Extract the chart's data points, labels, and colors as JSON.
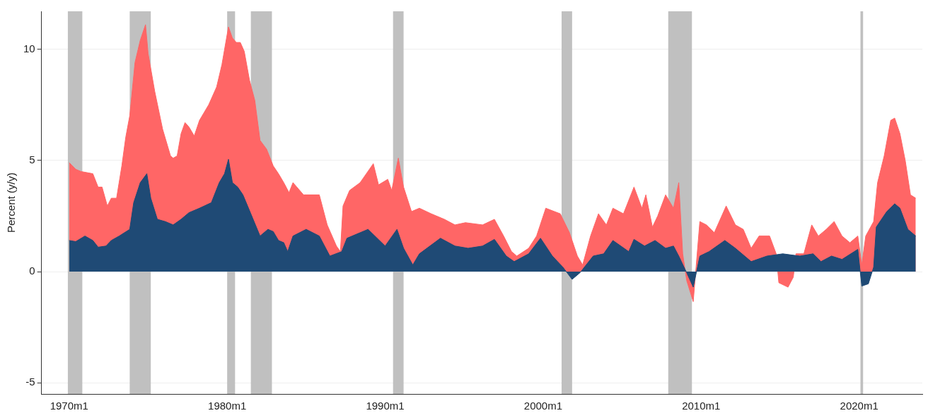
{
  "chart_data": {
    "type": "area",
    "ylabel": "Percent (y/y)",
    "xlim": [
      "1968-04",
      "2024-01"
    ],
    "xticks": [
      {
        "value": "1970-01",
        "label": "1970m1"
      },
      {
        "value": "1980-01",
        "label": "1980m1"
      },
      {
        "value": "1990-01",
        "label": "1990m1"
      },
      {
        "value": "2000-01",
        "label": "2000m1"
      },
      {
        "value": "2010-01",
        "label": "2010m1"
      },
      {
        "value": "2020-01",
        "label": "2020m1"
      }
    ],
    "ylim": [
      -5.5,
      11.7
    ],
    "yticks": [
      -5,
      0,
      5,
      10
    ],
    "grid": "y",
    "legend": false,
    "marker": "none",
    "bands": [
      {
        "axis": "x",
        "from": "1969-12",
        "to": "1970-11",
        "color": "#c0c0c0"
      },
      {
        "axis": "x",
        "from": "1973-11",
        "to": "1975-03",
        "color": "#c0c0c0"
      },
      {
        "axis": "x",
        "from": "1980-01",
        "to": "1980-07",
        "color": "#c0c0c0"
      },
      {
        "axis": "x",
        "from": "1981-07",
        "to": "1982-11",
        "color": "#c0c0c0"
      },
      {
        "axis": "x",
        "from": "1990-07",
        "to": "1991-03",
        "color": "#c0c0c0"
      },
      {
        "axis": "x",
        "from": "2001-03",
        "to": "2001-11",
        "color": "#c0c0c0"
      },
      {
        "axis": "x",
        "from": "2007-12",
        "to": "2009-06",
        "color": "#c0c0c0"
      },
      {
        "axis": "x",
        "from": "2020-02",
        "to": "2020-04",
        "color": "#c0c0c0"
      }
    ],
    "series": [
      {
        "color": "#ff6666",
        "x": [
          "1970-01",
          "1970-06",
          "1970-10",
          "1971-07",
          "1971-11",
          "1972-02",
          "1972-06",
          "1972-09",
          "1973-01",
          "1973-05",
          "1973-08",
          "1973-11",
          "1974-03",
          "1974-07",
          "1974-11",
          "1975-01",
          "1975-06",
          "1975-12",
          "1976-06",
          "1976-08",
          "1976-11",
          "1977-02",
          "1977-05",
          "1977-08",
          "1977-12",
          "1978-04",
          "1978-11",
          "1979-05",
          "1979-09",
          "1980-02",
          "1980-05",
          "1980-08",
          "1980-11",
          "1981-02",
          "1981-06",
          "1981-10",
          "1982-02",
          "1982-07",
          "1982-12",
          "1983-04",
          "1983-08",
          "1983-12",
          "1984-03",
          "1984-11",
          "1985-11",
          "1986-05",
          "1986-12",
          "1987-03",
          "1987-05",
          "1987-10",
          "1988-06",
          "1989-04",
          "1989-08",
          "1990-03",
          "1990-06",
          "1990-11",
          "1991-03",
          "1991-09",
          "1992-03",
          "1992-12",
          "1993-10",
          "1994-06",
          "1995-02",
          "1996-03",
          "1996-12",
          "1997-07",
          "1998-01",
          "1998-05",
          "1999-02",
          "1999-08",
          "2000-03",
          "2001-02",
          "2001-09",
          "2002-03",
          "2002-07",
          "2003-01",
          "2003-07",
          "2004-01",
          "2004-06",
          "2005-02",
          "2005-10",
          "2006-04",
          "2006-07",
          "2006-12",
          "2007-04",
          "2007-10",
          "2008-04",
          "2008-08",
          "2008-11",
          "2009-02",
          "2009-07",
          "2009-12",
          "2010-05",
          "2010-11",
          "2011-08",
          "2012-03",
          "2012-09",
          "2013-03",
          "2013-09",
          "2014-05",
          "2014-10",
          "2014-12",
          "2015-07",
          "2015-11",
          "2016-01",
          "2016-07",
          "2017-01",
          "2017-06",
          "2017-12",
          "2018-06",
          "2018-12",
          "2019-06",
          "2019-12",
          "2020-03",
          "2020-06",
          "2020-12",
          "2021-03",
          "2021-08",
          "2022-01",
          "2022-04",
          "2022-08",
          "2022-12",
          "2023-04",
          "2023-08"
        ],
        "values": [
          4.9,
          4.6,
          4.5,
          4.4,
          3.8,
          3.8,
          2.95,
          3.3,
          3.3,
          4.75,
          6.05,
          7.0,
          9.4,
          10.4,
          11.1,
          9.8,
          8.1,
          6.4,
          5.2,
          5.1,
          5.2,
          6.2,
          6.7,
          6.5,
          6.1,
          6.8,
          7.5,
          8.3,
          9.3,
          11.0,
          10.5,
          10.3,
          10.3,
          9.9,
          8.6,
          7.7,
          5.9,
          5.5,
          4.75,
          4.4,
          4.0,
          3.55,
          4.0,
          3.45,
          3.45,
          2.1,
          1.15,
          0.9,
          2.95,
          3.65,
          4.0,
          4.85,
          3.9,
          4.15,
          3.65,
          5.1,
          3.8,
          2.7,
          2.85,
          2.6,
          2.35,
          2.1,
          2.2,
          2.1,
          2.35,
          1.6,
          0.9,
          0.7,
          1.05,
          1.6,
          2.85,
          2.6,
          1.75,
          0.7,
          0.3,
          1.6,
          2.6,
          2.1,
          2.85,
          2.6,
          3.8,
          2.85,
          3.45,
          2.0,
          2.5,
          3.45,
          2.85,
          4.0,
          0.8,
          -0.4,
          -1.35,
          2.25,
          2.1,
          1.75,
          2.95,
          2.1,
          1.9,
          1.05,
          1.6,
          1.6,
          0.8,
          -0.5,
          -0.7,
          -0.25,
          0.8,
          0.8,
          2.1,
          1.6,
          1.9,
          2.25,
          1.6,
          1.3,
          1.6,
          0.3,
          1.6,
          2.25,
          4.0,
          5.2,
          6.8,
          6.9,
          6.2,
          5.0,
          3.45,
          3.3
        ]
      },
      {
        "color": "#1f4a75",
        "x": [
          "1970-01",
          "1970-06",
          "1971-01",
          "1971-07",
          "1971-11",
          "1972-05",
          "1972-09",
          "1973-03",
          "1973-11",
          "1974-02",
          "1974-07",
          "1974-12",
          "1975-03",
          "1975-08",
          "1976-02",
          "1976-08",
          "1977-02",
          "1977-08",
          "1978-04",
          "1979-01",
          "1979-07",
          "1979-11",
          "1980-02",
          "1980-05",
          "1980-09",
          "1981-01",
          "1981-07",
          "1982-02",
          "1982-08",
          "1982-12",
          "1983-04",
          "1983-08",
          "1983-11",
          "1984-03",
          "1985-01",
          "1985-11",
          "1986-07",
          "1987-04",
          "1987-08",
          "1988-12",
          "1990-01",
          "1990-10",
          "1991-03",
          "1991-10",
          "1992-03",
          "1993-07",
          "1994-06",
          "1995-04",
          "1996-03",
          "1996-12",
          "1997-09",
          "1998-03",
          "1999-02",
          "1999-11",
          "2000-08",
          "2001-04",
          "2001-11",
          "2002-05",
          "2003-03",
          "2003-11",
          "2004-06",
          "2005-06",
          "2005-10",
          "2006-06",
          "2007-02",
          "2007-10",
          "2008-04",
          "2008-08",
          "2009-02",
          "2009-07",
          "2009-12",
          "2010-07",
          "2011-07",
          "2012-03",
          "2013-03",
          "2014-03",
          "2015-03",
          "2016-04",
          "2017-02",
          "2017-08",
          "2018-04",
          "2018-12",
          "2019-12",
          "2020-03",
          "2020-08",
          "2020-12",
          "2021-02",
          "2021-10",
          "2022-04",
          "2022-08",
          "2023-02",
          "2023-08"
        ],
        "values": [
          1.4,
          1.35,
          1.6,
          1.4,
          1.1,
          1.15,
          1.4,
          1.6,
          1.9,
          3.1,
          4.0,
          4.4,
          3.3,
          2.35,
          2.25,
          2.1,
          2.35,
          2.65,
          2.85,
          3.1,
          4.0,
          4.4,
          5.05,
          4.0,
          3.8,
          3.45,
          2.6,
          1.6,
          1.9,
          1.8,
          1.4,
          1.3,
          0.9,
          1.6,
          1.9,
          1.6,
          0.7,
          0.9,
          1.5,
          1.9,
          1.15,
          1.9,
          1.05,
          0.3,
          0.8,
          1.5,
          1.15,
          1.05,
          1.15,
          1.45,
          0.7,
          0.45,
          0.8,
          1.5,
          0.7,
          0.2,
          -0.35,
          -0.05,
          0.7,
          0.8,
          1.4,
          0.9,
          1.45,
          1.15,
          1.4,
          1.05,
          1.15,
          0.7,
          -0.05,
          -0.7,
          0.7,
          0.9,
          1.4,
          1.05,
          0.45,
          0.7,
          0.8,
          0.7,
          0.8,
          0.45,
          0.7,
          0.55,
          1.0,
          -0.65,
          -0.55,
          0.2,
          2.0,
          2.7,
          3.05,
          2.85,
          1.9,
          1.6
        ]
      }
    ]
  }
}
